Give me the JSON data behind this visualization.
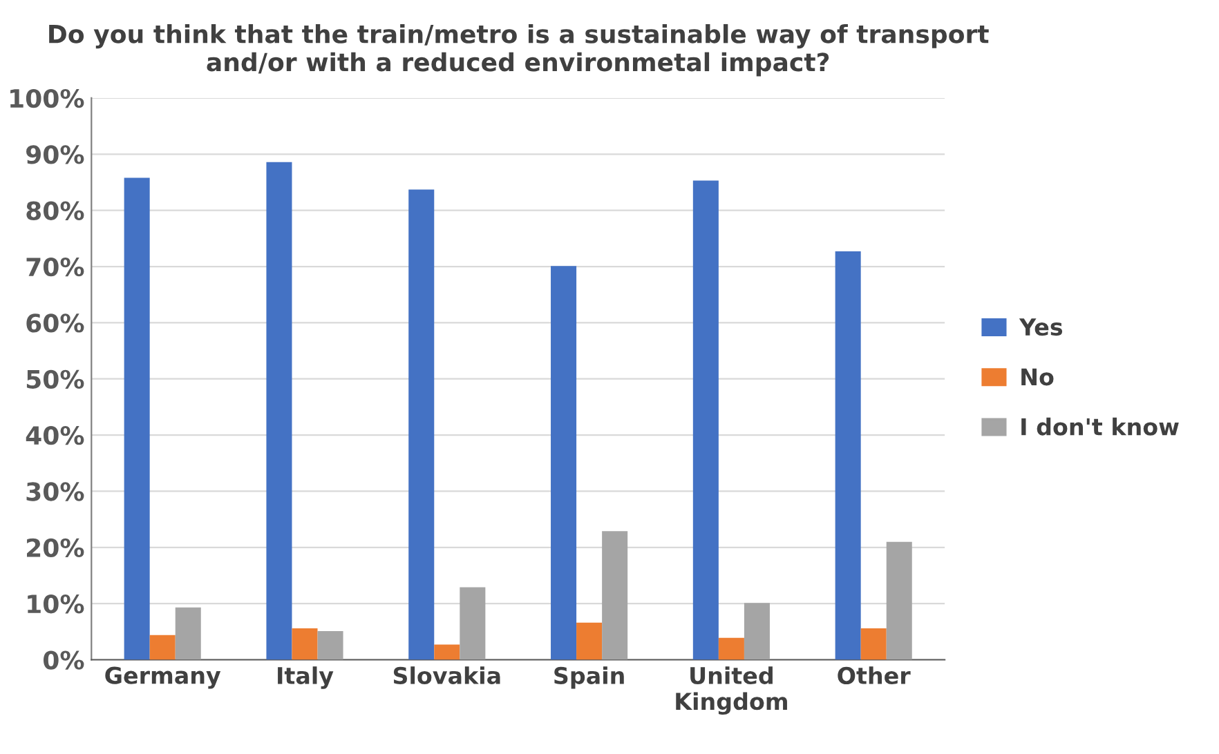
{
  "chart_data": {
    "type": "bar",
    "title": "Do you think that the train/metro is a sustainable way of transport\nand/or with a reduced environmetal impact?",
    "categories": [
      "Germany",
      "Italy",
      "Slovakia",
      "Spain",
      "United\nKingdom",
      "Other"
    ],
    "series": [
      {
        "name": "Yes",
        "color": "#4472c4",
        "values": [
          85.8,
          88.6,
          83.7,
          70.1,
          85.3,
          72.7
        ]
      },
      {
        "name": "No",
        "color": "#ed7d31",
        "values": [
          4.4,
          5.6,
          2.7,
          6.6,
          3.9,
          5.6
        ]
      },
      {
        "name": "I don't know",
        "color": "#a5a5a5",
        "values": [
          9.3,
          5.1,
          12.9,
          22.9,
          10.1,
          21.0
        ]
      }
    ],
    "ylim": [
      0,
      100
    ],
    "yticks": [
      {
        "value": 0,
        "label": "0%"
      },
      {
        "value": 10,
        "label": "10%"
      },
      {
        "value": 20,
        "label": "20%"
      },
      {
        "value": 30,
        "label": "30%"
      },
      {
        "value": 40,
        "label": "40%"
      },
      {
        "value": 50,
        "label": "50%"
      },
      {
        "value": 60,
        "label": "60%"
      },
      {
        "value": 70,
        "label": "70%"
      },
      {
        "value": 80,
        "label": "80%"
      },
      {
        "value": 90,
        "label": "90%"
      },
      {
        "value": 100,
        "label": "100%"
      }
    ],
    "grid": "y",
    "legend": "right"
  }
}
